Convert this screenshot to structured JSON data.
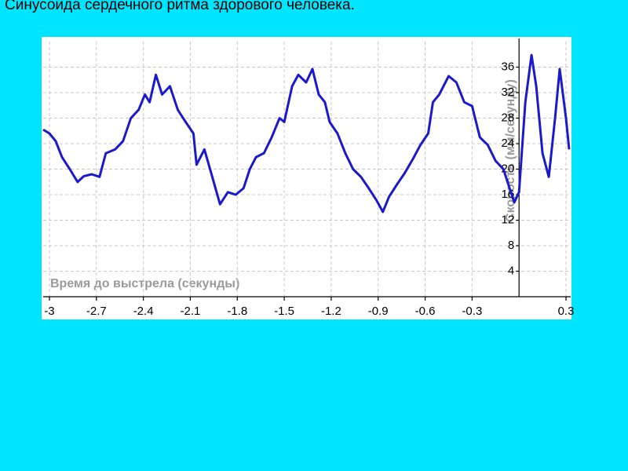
{
  "chart_data": {
    "type": "line",
    "title": "Синусоида сердечного ритма здорового человека.",
    "x_label": "Время до выстрела (секунды)",
    "y_label": "Скорость (мм/секунду)",
    "x": [
      -3.04,
      -3,
      -2.96,
      -2.92,
      -2.87,
      -2.82,
      -2.78,
      -2.73,
      -2.68,
      -2.64,
      -2.58,
      -2.53,
      -2.48,
      -2.43,
      -2.39,
      -2.36,
      -2.32,
      -2.28,
      -2.23,
      -2.18,
      -2.13,
      -2.08,
      -2.06,
      -2.01,
      -1.96,
      -1.91,
      -1.86,
      -1.81,
      -1.76,
      -1.72,
      -1.68,
      -1.63,
      -1.58,
      -1.53,
      -1.5,
      -1.45,
      -1.41,
      -1.36,
      -1.32,
      -1.28,
      -1.24,
      -1.21,
      -1.16,
      -1.11,
      -1.06,
      -1.01,
      -0.96,
      -0.91,
      -0.87,
      -0.83,
      -0.78,
      -0.73,
      -0.68,
      -0.63,
      -0.58,
      -0.55,
      -0.51,
      -0.45,
      -0.4,
      -0.35,
      -0.3,
      -0.25,
      -0.2,
      -0.15,
      -0.1,
      -0.06,
      -0.03,
      0,
      0.04,
      0.08,
      0.11,
      0.15,
      0.19,
      0.23,
      0.26,
      0.3,
      0.32
    ],
    "values": [
      26.2,
      25.6,
      24.4,
      21.9,
      20,
      18,
      18.9,
      19.2,
      18.8,
      22.5,
      23.1,
      24.4,
      28,
      29.3,
      31.7,
      30.5,
      34.8,
      31.7,
      33,
      29.3,
      27.4,
      25.6,
      20.7,
      23.1,
      18.8,
      14.5,
      16.4,
      16,
      17,
      20,
      21.9,
      22.5,
      25,
      28,
      27.4,
      33,
      34.8,
      33.6,
      35.7,
      31.7,
      30.5,
      27.4,
      25.6,
      22.5,
      20,
      18.8,
      17,
      15.1,
      13.3,
      15.7,
      17.6,
      19.4,
      21.5,
      23.8,
      25.6,
      30.5,
      31.7,
      34.6,
      33.6,
      30.5,
      29.9,
      25,
      23.8,
      21.3,
      20,
      17,
      14.8,
      16.4,
      30.5,
      37.9,
      33,
      22.5,
      18.8,
      28,
      35.7,
      28,
      23.1
    ],
    "color": "#1a1acc",
    "xlim": [
      -3.04,
      0.33
    ],
    "xticks": [
      -3,
      -2.7,
      -2.4,
      -2.1,
      -1.8,
      -1.5,
      -1.2,
      -0.9,
      -0.6,
      -0.3,
      0.3
    ],
    "ylim": [
      0,
      40
    ],
    "yticks": [
      4,
      8,
      12,
      16,
      20,
      24,
      28,
      32,
      36
    ],
    "grid": true
  }
}
